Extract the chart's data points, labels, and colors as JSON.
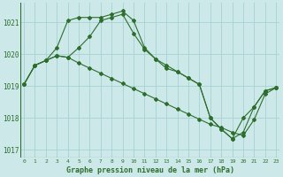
{
  "title": "Graphe pression niveau de la mer (hPa)",
  "bg_color": "#cce8e8",
  "grid_color": "#aad4d4",
  "line_color": "#2d6e2d",
  "label_color": "#2d6e2d",
  "xlim": [
    -0.3,
    23.3
  ],
  "ylim": [
    1016.75,
    1021.6
  ],
  "yticks": [
    1017,
    1018,
    1019,
    1020,
    1021
  ],
  "xticks": [
    0,
    1,
    2,
    3,
    4,
    5,
    6,
    7,
    8,
    9,
    10,
    11,
    12,
    13,
    14,
    15,
    16,
    17,
    18,
    19,
    20,
    21,
    22,
    23
  ],
  "series1": [
    1019.05,
    1019.65,
    1019.8,
    1019.95,
    1019.9,
    1020.2,
    1020.55,
    1021.05,
    1021.15,
    1021.25,
    1020.65,
    1020.15,
    1019.85,
    1019.65,
    1019.45,
    1019.25,
    1019.05,
    1018.0,
    1017.65,
    1017.35,
    1018.0,
    1018.35,
    1018.85,
    1018.95
  ],
  "series2": [
    1019.05,
    1019.65,
    1019.8,
    1019.95,
    1019.9,
    1019.72,
    1019.56,
    1019.4,
    1019.24,
    1019.08,
    1018.92,
    1018.76,
    1018.6,
    1018.44,
    1018.28,
    1018.12,
    1017.96,
    1017.8,
    1017.7,
    1017.55,
    1017.45,
    1017.95,
    1018.75,
    1018.95
  ],
  "series3": [
    1019.05,
    1019.65,
    1019.8,
    1020.2,
    1021.05,
    1021.15,
    1021.15,
    1021.15,
    1021.25,
    1021.35,
    1021.05,
    1020.2,
    1019.85,
    1019.55,
    1019.45,
    1019.25,
    1019.05,
    1018.0,
    1017.65,
    1017.35,
    1017.55,
    1018.35,
    1018.85,
    1018.95
  ]
}
